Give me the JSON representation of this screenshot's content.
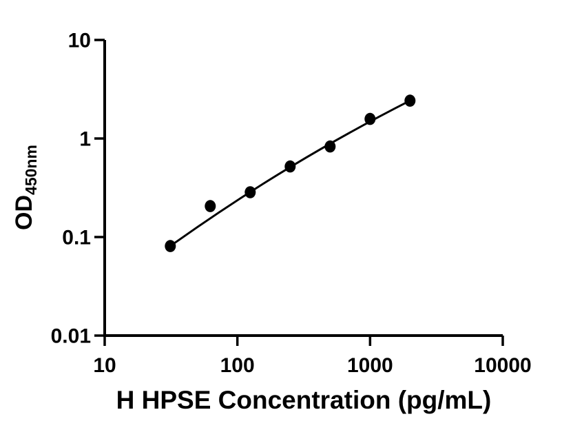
{
  "figure": {
    "background_color": "#ffffff",
    "ink_color": "#000000"
  },
  "chart_data": {
    "type": "scatter",
    "title": "",
    "xlabel": "H HPSE Concentration (pg/mL)",
    "ylabel_main": "OD",
    "ylabel_sub": "450nm",
    "x_scale": "log10",
    "y_scale": "log10",
    "xlim": [
      10,
      10000
    ],
    "ylim": [
      0.01,
      10
    ],
    "grid": false,
    "legend_position": "none",
    "x_ticks": [
      {
        "value": 10,
        "label": "10"
      },
      {
        "value": 100,
        "label": "100"
      },
      {
        "value": 1000,
        "label": "1000"
      },
      {
        "value": 10000,
        "label": "10000"
      }
    ],
    "y_ticks": [
      {
        "value": 0.01,
        "label": "0.01"
      },
      {
        "value": 0.1,
        "label": "0.1"
      },
      {
        "value": 1,
        "label": "1"
      },
      {
        "value": 10,
        "label": "10"
      }
    ],
    "series": [
      {
        "name": "standard-curve-points",
        "marker": "filled-circle",
        "marker_color": "#000000",
        "points": [
          {
            "x": 31.25,
            "y": 0.081
          },
          {
            "x": 62.5,
            "y": 0.206
          },
          {
            "x": 125,
            "y": 0.285
          },
          {
            "x": 250,
            "y": 0.52
          },
          {
            "x": 500,
            "y": 0.83
          },
          {
            "x": 1000,
            "y": 1.58
          },
          {
            "x": 2000,
            "y": 2.42
          }
        ]
      }
    ],
    "fit_curve": {
      "type": "cubic-bezier",
      "line_color": "#000000",
      "control_points_xy": [
        [
          31.25,
          0.081
        ],
        [
          135,
          0.33
        ],
        [
          504,
          0.94
        ],
        [
          2000,
          2.42
        ]
      ]
    }
  }
}
